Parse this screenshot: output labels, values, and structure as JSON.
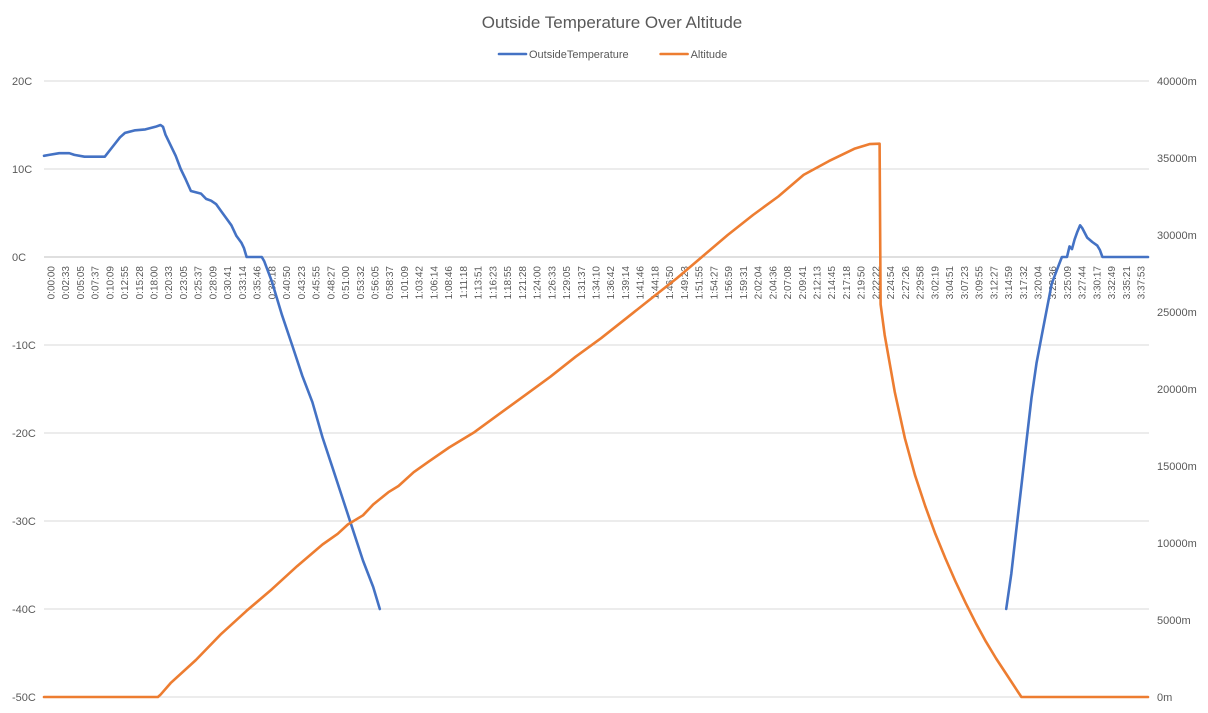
{
  "chart_data": {
    "type": "line",
    "title": "Outside Temperature Over Altitude",
    "legend": {
      "position": "top"
    },
    "grid": true,
    "y_left": {
      "ticks": [
        "20C",
        "10C",
        "0C",
        "-10C",
        "-20C",
        "-30C",
        "-40C",
        "-50C"
      ],
      "range": [
        -50,
        20
      ]
    },
    "y_right": {
      "ticks": [
        "40000m",
        "35000m",
        "30000m",
        "25000m",
        "20000m",
        "15000m",
        "10000m",
        "5000m",
        "0m"
      ],
      "range": [
        0,
        40000
      ]
    },
    "x_axis_crosses_left_at": 0,
    "x_labels": [
      "0:00:00",
      "0:02:33",
      "0:05:05",
      "0:07:37",
      "0:10:09",
      "0:12:55",
      "0:15:28",
      "0:18:00",
      "0:20:33",
      "0:23:05",
      "0:25:37",
      "0:28:09",
      "0:30:41",
      "0:33:14",
      "0:35:46",
      "0:38:18",
      "0:40:50",
      "0:43:23",
      "0:45:55",
      "0:48:27",
      "0:51:00",
      "0:53:32",
      "0:56:05",
      "0:58:37",
      "1:01:09",
      "1:03:42",
      "1:06:14",
      "1:08:46",
      "1:11:18",
      "1:13:51",
      "1:16:23",
      "1:18:55",
      "1:21:28",
      "1:24:00",
      "1:26:33",
      "1:29:05",
      "1:31:37",
      "1:34:10",
      "1:36:42",
      "1:39:14",
      "1:41:46",
      "1:44:18",
      "1:46:50",
      "1:49:23",
      "1:51:55",
      "1:54:27",
      "1:56:59",
      "1:59:31",
      "2:02:04",
      "2:04:36",
      "2:07:08",
      "2:09:41",
      "2:12:13",
      "2:14:45",
      "2:17:18",
      "2:19:50",
      "2:22:22",
      "2:24:54",
      "2:27:26",
      "2:29:58",
      "3:02:19",
      "3:04:51",
      "3:07:23",
      "3:09:55",
      "3:12:27",
      "3:14:59",
      "3:17:32",
      "3:20:04",
      "3:22:36",
      "3:25:09",
      "3:27:44",
      "3:30:17",
      "3:32:49",
      "3:35:21",
      "3:37:53"
    ],
    "x_range_minutes": [
      0,
      218.2
    ],
    "series": [
      {
        "name": "OutsideTemperature",
        "color": "#4472c4",
        "axis": "left",
        "segments": [
          [
            [
              0,
              11.5
            ],
            [
              1,
              11.6
            ],
            [
              3,
              11.8
            ],
            [
              5,
              11.8
            ],
            [
              6,
              11.6
            ],
            [
              8,
              11.4
            ],
            [
              12,
              11.4
            ],
            [
              13.5,
              12.5
            ],
            [
              15,
              13.6
            ],
            [
              16,
              14.1
            ],
            [
              18,
              14.4
            ],
            [
              20,
              14.5
            ],
            [
              22,
              14.8
            ],
            [
              23,
              15.0
            ],
            [
              23.5,
              14.8
            ],
            [
              24,
              13.9
            ],
            [
              26,
              11.5
            ],
            [
              27,
              10.0
            ],
            [
              28,
              8.8
            ],
            [
              29,
              7.5
            ],
            [
              31,
              7.2
            ],
            [
              32,
              6.6
            ],
            [
              33,
              6.4
            ],
            [
              34,
              6.0
            ],
            [
              35,
              5.2
            ],
            [
              36,
              4.4
            ],
            [
              37,
              3.6
            ],
            [
              38,
              2.4
            ],
            [
              39,
              1.6
            ],
            [
              39.5,
              1.0
            ],
            [
              40,
              0
            ],
            [
              43,
              0
            ],
            [
              43.5,
              -0.5
            ],
            [
              45,
              -2.8
            ],
            [
              47,
              -6.6
            ],
            [
              49,
              -10
            ],
            [
              51,
              -13.5
            ],
            [
              53,
              -16.5
            ],
            [
              55,
              -20.5
            ],
            [
              57,
              -24
            ],
            [
              59,
              -27.5
            ],
            [
              61,
              -31
            ],
            [
              63,
              -34.5
            ],
            [
              65,
              -37.5
            ],
            [
              66.3,
              -40
            ]
          ],
          [
            [
              190,
              -40
            ],
            [
              191,
              -36
            ],
            [
              192,
              -31
            ],
            [
              193,
              -26
            ],
            [
              194,
              -21
            ],
            [
              195,
              -16
            ],
            [
              196,
              -12
            ],
            [
              197,
              -9
            ],
            [
              198,
              -6
            ],
            [
              199,
              -3
            ],
            [
              200,
              -1.5
            ],
            [
              201,
              0
            ],
            [
              202,
              0
            ],
            [
              202.5,
              1.2
            ],
            [
              203,
              0.9
            ],
            [
              203.5,
              2.0
            ],
            [
              204,
              2.8
            ],
            [
              204.6,
              3.6
            ],
            [
              205,
              3.3
            ],
            [
              206,
              2.2
            ],
            [
              207,
              1.7
            ],
            [
              208,
              1.3
            ],
            [
              208.5,
              0.8
            ],
            [
              209,
              0
            ],
            [
              218,
              0
            ]
          ]
        ]
      },
      {
        "name": "Altitude",
        "color": "#ed7d31",
        "axis": "right",
        "segments": [
          [
            [
              0,
              0
            ],
            [
              22.5,
              0
            ],
            [
              23,
              150
            ],
            [
              25,
              900
            ],
            [
              30,
              2400
            ],
            [
              35,
              4100
            ],
            [
              40,
              5600
            ],
            [
              45,
              7000
            ],
            [
              50,
              8500
            ],
            [
              55,
              9900
            ],
            [
              58,
              10600
            ],
            [
              60,
              11200
            ],
            [
              63,
              11800
            ],
            [
              65,
              12500
            ],
            [
              68,
              13300
            ],
            [
              70,
              13700
            ],
            [
              73,
              14600
            ],
            [
              76,
              15300
            ],
            [
              80,
              16200
            ],
            [
              85,
              17200
            ],
            [
              90,
              18400
            ],
            [
              95,
              19600
            ],
            [
              100,
              20800
            ],
            [
              105,
              22100
            ],
            [
              110,
              23300
            ],
            [
              115,
              24600
            ],
            [
              120,
              25900
            ],
            [
              125,
              27200
            ],
            [
              130,
              28600
            ],
            [
              135,
              30000
            ],
            [
              140,
              31300
            ],
            [
              145,
              32500
            ],
            [
              150,
              33900
            ],
            [
              155,
              34800
            ],
            [
              160,
              35600
            ],
            [
              163,
              35900
            ],
            [
              165,
              35930
            ],
            [
              165.2,
              25500
            ],
            [
              166,
              23500
            ],
            [
              168,
              19800
            ],
            [
              170,
              16800
            ],
            [
              172,
              14400
            ],
            [
              174,
              12400
            ],
            [
              176,
              10600
            ],
            [
              178,
              9000
            ],
            [
              180,
              7500
            ],
            [
              182,
              6100
            ],
            [
              184,
              4800
            ],
            [
              186,
              3600
            ],
            [
              188,
              2500
            ],
            [
              190,
              1500
            ],
            [
              192,
              500
            ],
            [
              193,
              0
            ],
            [
              206,
              0
            ],
            [
              218,
              0
            ]
          ]
        ]
      }
    ]
  }
}
